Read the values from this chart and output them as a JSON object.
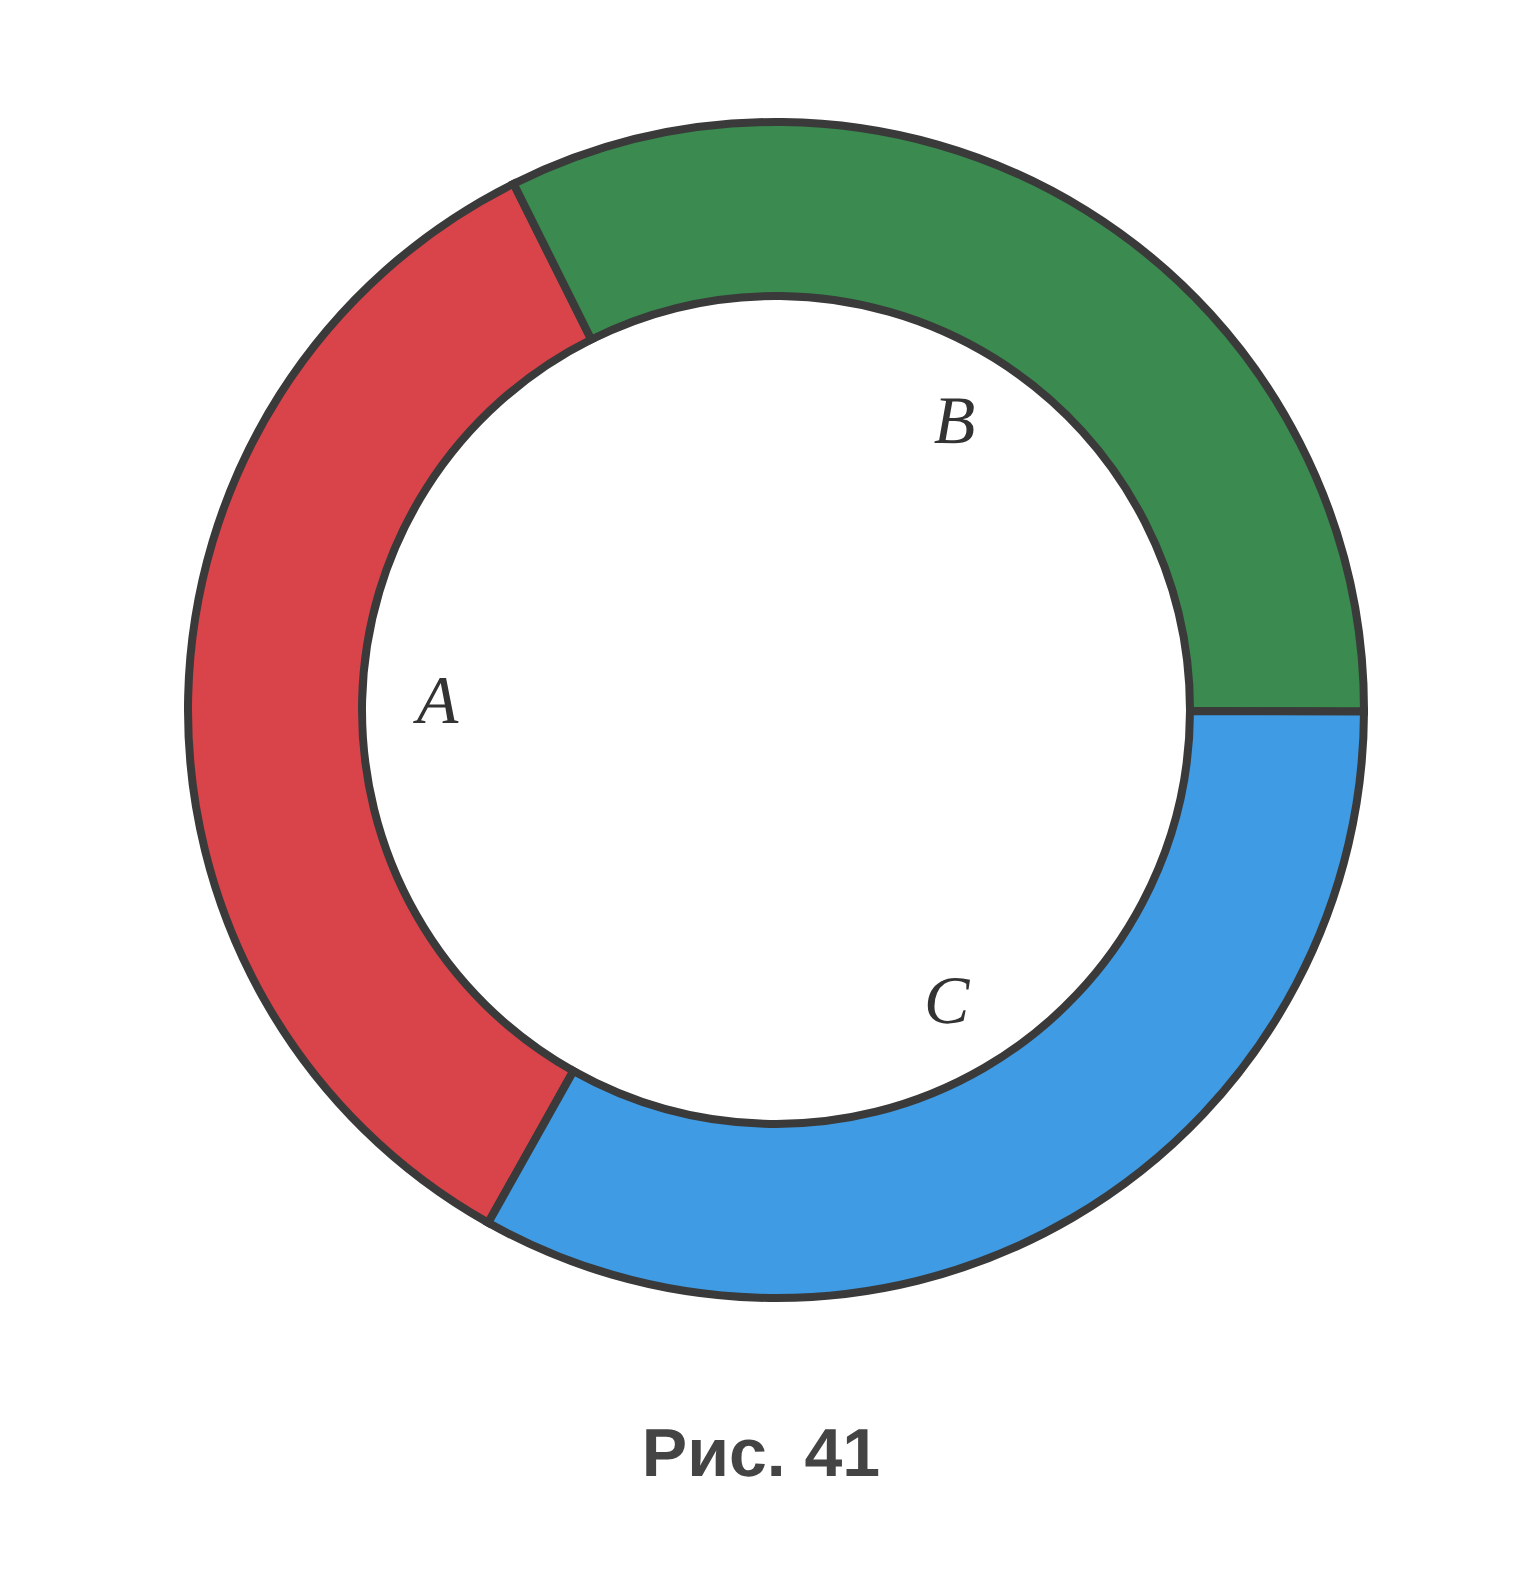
{
  "chart_data": {
    "type": "donut",
    "categories": [
      "A",
      "B",
      "C"
    ],
    "values": [
      34.5,
      32.4,
      33.1
    ],
    "colors": [
      "#d9434a",
      "#3b8a4f",
      "#3f9be3"
    ],
    "annotations": [
      "Рис. 41"
    ]
  }
}
